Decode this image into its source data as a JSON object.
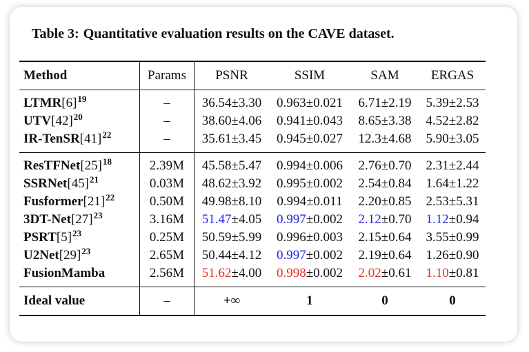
{
  "caption": {
    "label": "Table 3:",
    "text": "Quantitative evaluation results on the CAVE dataset."
  },
  "columns": {
    "method": "Method",
    "params": "Params",
    "psnr": "PSNR",
    "ssim": "SSIM",
    "sam": "SAM",
    "ergas": "ERGAS"
  },
  "colors": {
    "best": "#e0321e",
    "second": "#2323e0"
  },
  "group1": [
    {
      "name": "LTMR",
      "ref": "[6]",
      "year": "19",
      "params": "–",
      "psnr_v": "36.54",
      "psnr_s": "±3.30",
      "ssim_v": "0.963",
      "ssim_s": "±0.021",
      "sam_v": "6.71",
      "sam_s": "±2.19",
      "ergas_v": "5.39",
      "ergas_s": "±2.53"
    },
    {
      "name": "UTV",
      "ref": "[42]",
      "year": "20",
      "params": "–",
      "psnr_v": "38.60",
      "psnr_s": "±4.06",
      "ssim_v": "0.941",
      "ssim_s": "±0.043",
      "sam_v": "8.65",
      "sam_s": "±3.38",
      "ergas_v": "4.52",
      "ergas_s": "±2.82"
    },
    {
      "name": "IR-TenSR",
      "ref": "[41]",
      "year": "22",
      "params": "–",
      "psnr_v": "35.61",
      "psnr_s": "±3.45",
      "ssim_v": "0.945",
      "ssim_s": "±0.027",
      "sam_v": "12.3",
      "sam_s": "±4.68",
      "ergas_v": "5.90",
      "ergas_s": "±3.05"
    }
  ],
  "group2": [
    {
      "name": "ResTFNet",
      "ref": "[25]",
      "year": "18",
      "params": "2.39M",
      "psnr_v": "45.58",
      "psnr_s": "±5.47",
      "ssim_v": "0.994",
      "ssim_s": "±0.006",
      "sam_v": "2.76",
      "sam_s": "±0.70",
      "ergas_v": "2.31",
      "ergas_s": "±2.44"
    },
    {
      "name": "SSRNet",
      "ref": "[45]",
      "year": "21",
      "params": "0.03M",
      "psnr_v": "48.62",
      "psnr_s": "±3.92",
      "ssim_v": "0.995",
      "ssim_s": "±0.002",
      "sam_v": "2.54",
      "sam_s": "±0.84",
      "ergas_v": "1.64",
      "ergas_s": "±1.22"
    },
    {
      "name": "Fusformer",
      "ref": "[21]",
      "year": "22",
      "params": "0.50M",
      "psnr_v": "49.98",
      "psnr_s": "±8.10",
      "ssim_v": "0.994",
      "ssim_s": "±0.011",
      "sam_v": "2.20",
      "sam_s": "±0.85",
      "ergas_v": "2.53",
      "ergas_s": "±5.31"
    },
    {
      "name": "3DT-Net",
      "ref": "[27]",
      "year": "23",
      "params": "3.16M",
      "psnr_v": "51.47",
      "psnr_s": "±4.05",
      "ssim_v": "0.997",
      "ssim_s": "±0.002",
      "sam_v": "2.12",
      "sam_s": "±0.70",
      "ergas_v": "1.12",
      "ergas_s": "±0.94"
    },
    {
      "name": "PSRT",
      "ref": "[5]",
      "year": "23",
      "params": "0.25M",
      "psnr_v": "50.59",
      "psnr_s": "±5.99",
      "ssim_v": "0.996",
      "ssim_s": "±0.003",
      "sam_v": "2.15",
      "sam_s": "±0.64",
      "ergas_v": "3.55",
      "ergas_s": "±0.99"
    },
    {
      "name": "U2Net",
      "ref": "[29]",
      "year": "23",
      "params": "2.65M",
      "psnr_v": "50.44",
      "psnr_s": "±4.12",
      "ssim_v": "0.997",
      "ssim_s": "±0.002",
      "sam_v": "2.19",
      "sam_s": "±0.64",
      "ergas_v": "1.26",
      "ergas_s": "±0.90"
    },
    {
      "name": "FusionMamba",
      "ref": "",
      "year": "",
      "params": "2.56M",
      "psnr_v": "51.62",
      "psnr_s": "±4.00",
      "ssim_v": "0.998",
      "ssim_s": "±0.002",
      "sam_v": "2.02",
      "sam_s": "±0.61",
      "ergas_v": "1.10",
      "ergas_s": "±0.81"
    }
  ],
  "ideal": {
    "label": "Ideal value",
    "params": "–",
    "psnr": "+∞",
    "ssim": "1",
    "sam": "0",
    "ergas": "0"
  }
}
